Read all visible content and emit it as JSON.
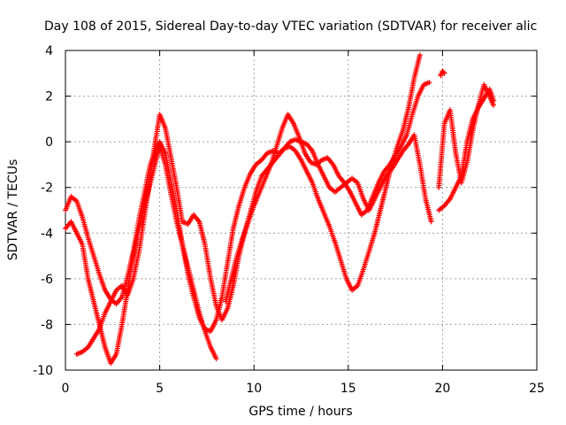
{
  "chart_data": {
    "type": "scatter",
    "title": "Day 108 of 2015, Sidereal Day-to-day VTEC variation (SDTVAR) for receiver alic",
    "xlabel": "GPS time / hours",
    "ylabel": "SDTVAR / TECUs",
    "xlim": [
      0,
      25
    ],
    "ylim": [
      -10,
      4
    ],
    "xticks": [
      "0",
      "5",
      "10",
      "15",
      "20",
      "25"
    ],
    "yticks": [
      "-10",
      "-8",
      "-6",
      "-4",
      "-2",
      "0",
      "2",
      "4"
    ],
    "grid": true,
    "legend": "none",
    "marker": "+",
    "color": "#ff0000",
    "series": [
      {
        "x": [
          0.0,
          0.3,
          0.6,
          0.9,
          1.2,
          1.5,
          1.8,
          2.1,
          2.4,
          2.7,
          3.0,
          3.3,
          3.6,
          3.9,
          4.2,
          4.5,
          4.8,
          5.0,
          5.3,
          5.6,
          5.9,
          6.2,
          6.5,
          6.8,
          7.1,
          7.4,
          7.7,
          8.0,
          8.3,
          8.6,
          8.9,
          9.2,
          9.5,
          9.8,
          10.1,
          10.4,
          10.7,
          11.0,
          11.3,
          11.6,
          11.9,
          12.2,
          12.5,
          12.8,
          13.1,
          13.4,
          13.7,
          14.0,
          14.3,
          14.6,
          14.9,
          15.2,
          15.5,
          15.8,
          16.1,
          16.4,
          16.7,
          17.0,
          17.3,
          17.6,
          17.9,
          18.2,
          18.5,
          18.8
        ],
        "y": [
          -3.0,
          -2.4,
          -2.6,
          -3.3,
          -4.2,
          -5.0,
          -5.8,
          -6.5,
          -6.9,
          -7.1,
          -6.8,
          -5.9,
          -4.8,
          -3.4,
          -2.2,
          -1.0,
          -0.3,
          0.0,
          -0.5,
          -1.8,
          -3.0,
          -4.5,
          -5.8,
          -6.8,
          -7.7,
          -8.2,
          -8.3,
          -7.8,
          -6.8,
          -5.3,
          -3.8,
          -2.8,
          -2.0,
          -1.4,
          -1.0,
          -0.8,
          -0.5,
          -0.4,
          -0.5,
          -0.3,
          -0.2,
          -0.4,
          -0.8,
          -1.3,
          -1.8,
          -2.5,
          -3.1,
          -3.7,
          -4.4,
          -5.2,
          -6.0,
          -6.5,
          -6.3,
          -5.6,
          -4.8,
          -4.0,
          -3.0,
          -2.0,
          -1.0,
          -0.2,
          0.5,
          1.5,
          2.8,
          3.8
        ]
      },
      {
        "x": [
          0.0,
          0.3,
          0.6,
          0.9,
          1.2,
          1.5,
          1.8,
          2.1,
          2.4,
          2.7,
          3.0,
          3.3,
          3.6,
          3.9,
          4.2,
          4.5,
          4.8,
          5.0,
          5.3,
          5.6,
          5.9,
          6.2,
          6.5,
          6.8,
          7.1,
          7.4,
          7.7,
          8.0
        ],
        "y": [
          -3.8,
          -3.5,
          -4.0,
          -4.5,
          -6.0,
          -7.0,
          -8.0,
          -9.0,
          -9.7,
          -9.3,
          -8.0,
          -6.5,
          -5.0,
          -3.8,
          -2.8,
          -1.8,
          -0.8,
          -0.2,
          -1.0,
          -2.3,
          -3.5,
          -4.5,
          -5.5,
          -6.5,
          -7.5,
          -8.3,
          -9.0,
          -9.5
        ]
      },
      {
        "x": [
          0.6,
          0.9,
          1.2,
          1.5,
          1.8,
          2.1,
          2.4,
          2.7,
          3.0,
          3.3,
          3.6,
          3.9,
          4.2,
          4.5,
          4.8,
          5.0,
          5.3,
          5.6,
          5.9,
          6.2,
          6.5,
          6.8,
          7.1,
          7.4,
          7.7,
          8.0,
          8.3,
          8.6,
          8.9,
          9.2,
          9.5,
          9.8,
          10.1,
          10.4,
          10.7,
          11.0,
          11.3,
          11.6,
          11.9,
          12.2,
          12.5,
          12.8,
          13.1,
          13.4,
          13.7,
          14.0,
          14.3,
          14.6,
          14.9,
          15.2,
          15.5,
          15.8,
          16.1,
          16.4,
          16.7,
          17.0,
          17.3,
          17.6,
          17.9,
          18.2,
          18.5,
          18.8,
          19.1,
          19.4
        ],
        "y": [
          -9.3,
          -9.2,
          -9.0,
          -8.6,
          -8.2,
          -7.5,
          -7.0,
          -6.5,
          -6.3,
          -6.7,
          -6.0,
          -4.8,
          -3.2,
          -1.5,
          0.2,
          1.2,
          0.6,
          -0.7,
          -2.0,
          -3.5,
          -3.6,
          -3.2,
          -3.5,
          -4.5,
          -6.0,
          -7.2,
          -7.8,
          -7.3,
          -6.3,
          -5.0,
          -4.0,
          -3.1,
          -2.2,
          -1.5,
          -1.2,
          -0.9,
          -0.6,
          -0.3,
          0.0,
          0.1,
          0.0,
          -0.1,
          -0.4,
          -1.0,
          -1.5,
          -2.0,
          -2.2,
          -2.0,
          -1.8,
          -1.6,
          -1.8,
          -2.5,
          -3.0,
          -2.5,
          -2.0,
          -1.5,
          -1.2,
          -0.8,
          -0.4,
          -0.1,
          0.3,
          -1.0,
          -2.5,
          -3.5
        ]
      },
      {
        "x": [
          8.5,
          8.8,
          9.1,
          9.4,
          9.7,
          10.0,
          10.3,
          10.6,
          10.9,
          11.2,
          11.5,
          11.8,
          12.1,
          12.4,
          12.7,
          13.0,
          13.3,
          13.6,
          13.9,
          14.2,
          14.5,
          14.8,
          15.1,
          15.4,
          15.7,
          16.0,
          16.3,
          16.6,
          16.9,
          17.2,
          17.5,
          17.8,
          18.1,
          18.4,
          18.7,
          19.0,
          19.3
        ],
        "y": [
          -7.0,
          -6.0,
          -5.0,
          -4.2,
          -3.5,
          -2.8,
          -2.2,
          -1.6,
          -1.0,
          -0.2,
          0.6,
          1.2,
          0.8,
          0.2,
          -0.5,
          -0.9,
          -1.0,
          -0.8,
          -0.7,
          -1.0,
          -1.5,
          -1.8,
          -2.2,
          -2.7,
          -3.2,
          -3.0,
          -2.4,
          -1.8,
          -1.3,
          -1.0,
          -0.6,
          -0.2,
          0.3,
          1.2,
          2.0,
          2.5,
          2.6
        ]
      },
      {
        "x": [
          19.8,
          20.1,
          20.4,
          20.7,
          21.0,
          21.3,
          21.6,
          21.9,
          22.2,
          22.5,
          22.7
        ],
        "y": [
          -2.0,
          0.8,
          1.4,
          -0.5,
          -1.8,
          -0.9,
          0.5,
          1.6,
          2.5,
          2.0,
          1.6
        ]
      },
      {
        "x": [
          19.8,
          20.1,
          20.4,
          20.7,
          21.0,
          21.3,
          21.6,
          21.9,
          22.2,
          22.5,
          22.7
        ],
        "y": [
          -3.0,
          -2.8,
          -2.5,
          -2.0,
          -1.5,
          0.0,
          1.0,
          1.5,
          1.9,
          2.3,
          1.8
        ]
      },
      {
        "x": [
          19.9,
          20.0,
          20.1
        ],
        "y": [
          2.9,
          3.1,
          3.0
        ]
      }
    ]
  }
}
